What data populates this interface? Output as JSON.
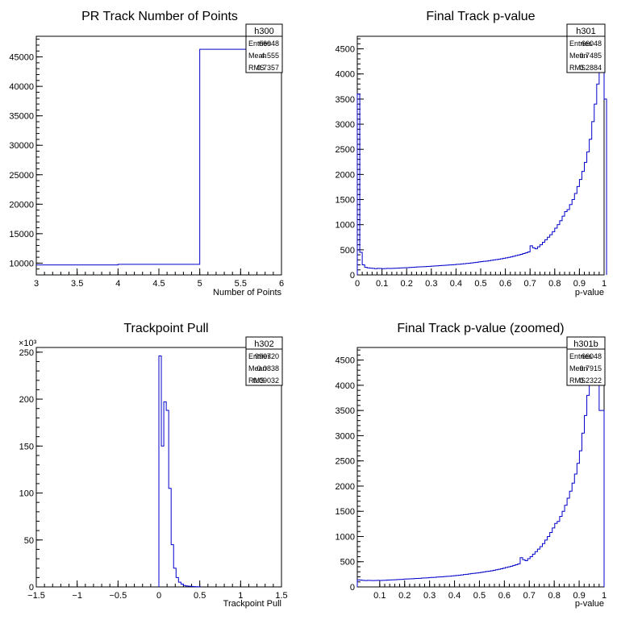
{
  "chart_data": [
    {
      "type": "histogram",
      "title": "PR Track Number of Points",
      "xlabel": "Number of Points",
      "ylabel": "",
      "xlim": [
        3,
        6
      ],
      "ylim": [
        8000,
        48500
      ],
      "xticks": [
        "3",
        "3.5",
        "4",
        "4.5",
        "5",
        "5.5",
        "6"
      ],
      "yticks": [
        "10000",
        "15000",
        "20000",
        "25000",
        "30000",
        "35000",
        "40000",
        "45000"
      ],
      "x_exponent": "",
      "y_exponent": "",
      "line_color": "#0000cc",
      "bins": [
        {
          "x0": 3,
          "x1": 4,
          "y": 9700
        },
        {
          "x0": 4,
          "x1": 5,
          "y": 9800
        },
        {
          "x0": 5,
          "x1": 6,
          "y": 46300
        }
      ],
      "stats": {
        "name": "h300",
        "rows": [
          [
            "Entries",
            "66048"
          ],
          [
            "Mean",
            "4.555"
          ],
          [
            "RMS",
            "0.7357"
          ]
        ]
      }
    },
    {
      "type": "histogram",
      "title": "Final Track p-value",
      "xlabel": "p-value",
      "ylabel": "",
      "xlim": [
        0,
        1
      ],
      "ylim": [
        0,
        4750
      ],
      "xticks": [
        "0",
        "0.1",
        "0.2",
        "0.3",
        "0.4",
        "0.5",
        "0.6",
        "0.7",
        "0.8",
        "0.9",
        "1"
      ],
      "yticks": [
        "0",
        "500",
        "1000",
        "1500",
        "2000",
        "2500",
        "3000",
        "3500",
        "4000",
        "4500"
      ],
      "x_exponent": "",
      "y_exponent": "",
      "line_color": "#0000cc",
      "x0": 0,
      "bin_width": 0.01,
      "values": [
        3600,
        450,
        200,
        150,
        140,
        135,
        130,
        125,
        130,
        128,
        125,
        127,
        130,
        128,
        130,
        132,
        135,
        138,
        140,
        142,
        145,
        148,
        150,
        155,
        158,
        160,
        162,
        165,
        168,
        170,
        175,
        178,
        180,
        185,
        188,
        190,
        195,
        198,
        200,
        205,
        210,
        212,
        218,
        222,
        228,
        232,
        238,
        245,
        250,
        258,
        265,
        270,
        275,
        282,
        290,
        298,
        305,
        312,
        320,
        330,
        340,
        350,
        360,
        372,
        385,
        398,
        410,
        425,
        440,
        458,
        580,
        540,
        520,
        560,
        600,
        650,
        700,
        750,
        800,
        860,
        930,
        1000,
        1080,
        1170,
        1260,
        1300,
        1400,
        1500,
        1620,
        1760,
        1900,
        2060,
        2240,
        2450,
        2700,
        3050,
        3400,
        3800,
        4100,
        4600,
        3500
      ],
      "stats": {
        "name": "h301",
        "rows": [
          [
            "Entries",
            "66048"
          ],
          [
            "Mean",
            "0.7485"
          ],
          [
            "RMS",
            "0.2884"
          ]
        ]
      }
    },
    {
      "type": "histogram",
      "title": "Trackpoint Pull",
      "xlabel": "Trackpoint Pull",
      "ylabel": "",
      "xlim": [
        -1.5,
        1.5
      ],
      "ylim": [
        0,
        255
      ],
      "xticks": [
        "−1.5",
        "−1",
        "−0.5",
        "0",
        "0.5",
        "1",
        "1.5"
      ],
      "yticks": [
        "0",
        "50",
        "100",
        "150",
        "200",
        "250"
      ],
      "x_exponent": "",
      "y_exponent": "×10³",
      "line_color": "#0000cc",
      "x0": 0,
      "bin_width": 0.03,
      "values": [
        246,
        150,
        197,
        188,
        105,
        45,
        20,
        10,
        5,
        3,
        1.5,
        1,
        0.7,
        0.5,
        0.3,
        0.2,
        0.1
      ],
      "stats": {
        "name": "h302",
        "rows": [
          [
            "Entries",
            "990720"
          ],
          [
            "Mean",
            "0.0838"
          ],
          [
            "RMS",
            "0.09032"
          ]
        ]
      }
    },
    {
      "type": "histogram",
      "title": "Final Track p-value (zoomed)",
      "xlabel": "p-value",
      "ylabel": "",
      "xlim": [
        0.01,
        1
      ],
      "ylim": [
        0,
        4750
      ],
      "xticks": [
        "0.1",
        "0.2",
        "0.3",
        "0.4",
        "0.5",
        "0.6",
        "0.7",
        "0.8",
        "0.9",
        "1"
      ],
      "yticks": [
        "0",
        "500",
        "1000",
        "1500",
        "2000",
        "2500",
        "3000",
        "3500",
        "4000",
        "4500"
      ],
      "x_exponent": "",
      "y_exponent": "",
      "line_color": "#0000cc",
      "x0": 0.01,
      "bin_width": 0.0099,
      "values": [
        140,
        135,
        130,
        125,
        130,
        128,
        125,
        127,
        130,
        128,
        130,
        132,
        135,
        138,
        140,
        142,
        145,
        148,
        150,
        155,
        158,
        160,
        162,
        165,
        168,
        170,
        175,
        178,
        180,
        185,
        188,
        190,
        195,
        198,
        200,
        205,
        210,
        212,
        218,
        222,
        228,
        232,
        238,
        245,
        250,
        258,
        265,
        270,
        275,
        282,
        290,
        298,
        305,
        312,
        320,
        330,
        340,
        350,
        360,
        372,
        385,
        398,
        410,
        425,
        440,
        458,
        580,
        540,
        520,
        560,
        600,
        650,
        700,
        750,
        800,
        860,
        930,
        1000,
        1080,
        1170,
        1260,
        1300,
        1400,
        1500,
        1620,
        1760,
        1900,
        2060,
        2240,
        2450,
        2700,
        3050,
        3400,
        3800,
        4100,
        4600,
        4300,
        4600,
        3500,
        3500
      ],
      "stats": {
        "name": "h301b",
        "rows": [
          [
            "Entries",
            "66048"
          ],
          [
            "Mean",
            "0.7915"
          ],
          [
            "RMS",
            "0.2322"
          ]
        ]
      }
    }
  ]
}
